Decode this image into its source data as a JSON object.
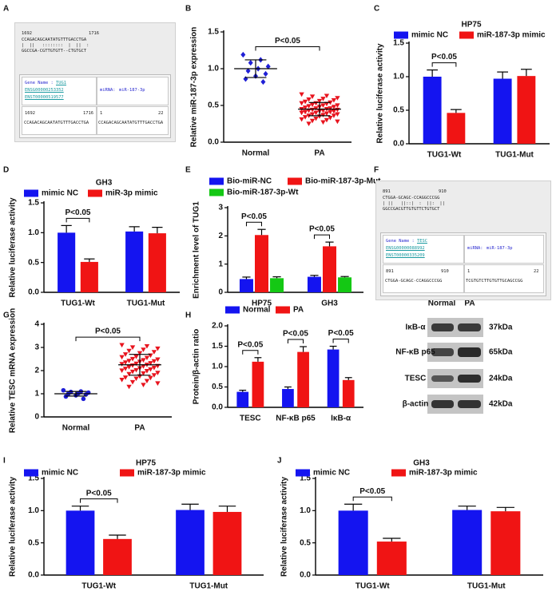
{
  "chart_data": [
    {
      "panel": "B",
      "type": "scatter",
      "y_label": "Relative miR-187-3p expression",
      "categories": [
        "Normal",
        "PA"
      ],
      "groups": [
        {
          "color": "#1f1fd6",
          "marker": "diamond",
          "values": [
            1.19,
            1.12,
            1.08,
            1.03,
            1.0,
            0.97,
            0.93,
            0.9,
            0.86,
            0.82
          ],
          "mean": 1.0,
          "sd": 0.12
        },
        {
          "color": "#e8141e",
          "marker": "triangle-down",
          "values": [
            0.65,
            0.63,
            0.62,
            0.6,
            0.59,
            0.58,
            0.57,
            0.56,
            0.55,
            0.54,
            0.53,
            0.53,
            0.52,
            0.51,
            0.5,
            0.5,
            0.49,
            0.48,
            0.48,
            0.47,
            0.46,
            0.46,
            0.45,
            0.45,
            0.44,
            0.44,
            0.43,
            0.43,
            0.42,
            0.42,
            0.41,
            0.41,
            0.4,
            0.4,
            0.39,
            0.38,
            0.38,
            0.37,
            0.36,
            0.36,
            0.35,
            0.34,
            0.33,
            0.32,
            0.31,
            0.3,
            0.29,
            0.28,
            0.27,
            0.25
          ],
          "mean": 0.45,
          "sd": 0.09
        }
      ],
      "ylim": [
        0,
        1.5
      ],
      "yticks": [
        {
          "value": 0,
          "label": "0.0"
        },
        {
          "value": 0.5,
          "label": "0.5"
        },
        {
          "value": 1,
          "label": "1.0"
        },
        {
          "value": 1.5,
          "label": "1.5"
        }
      ],
      "annotations": [
        {
          "text": "P<0.05",
          "between": [
            0,
            1
          ]
        }
      ]
    },
    {
      "panel": "C",
      "type": "bar",
      "title": "HP75",
      "y_label": "Relative luciferase activity",
      "categories": [
        "TUG1-Wt",
        "TUG1-Mut"
      ],
      "series": [
        {
          "name": "mimic NC",
          "color": "#1414f0",
          "values": [
            1.0,
            0.97
          ],
          "errors": [
            0.1,
            0.1
          ]
        },
        {
          "name": "miR-187-3p mimic",
          "color": "#f01414",
          "values": [
            0.46,
            1.01
          ],
          "errors": [
            0.05,
            0.1
          ]
        }
      ],
      "ylim": [
        0,
        1.5
      ],
      "yticks": [
        {
          "value": 0,
          "label": "0.0"
        },
        {
          "value": 0.5,
          "label": "0.5"
        },
        {
          "value": 1,
          "label": "1.0"
        },
        {
          "value": 1.5,
          "label": "1.5"
        }
      ],
      "annotations": [
        {
          "text": "P<0.05",
          "category": 0,
          "between": [
            0,
            1
          ]
        }
      ]
    },
    {
      "panel": "D",
      "type": "bar",
      "title": "GH3",
      "y_label": "Relative luciferase activity",
      "categories": [
        "TUG1-Wt",
        "TUG1-Mut"
      ],
      "series": [
        {
          "name": "mimic NC",
          "color": "#1414f0",
          "values": [
            1.0,
            1.02
          ],
          "errors": [
            0.12,
            0.08
          ]
        },
        {
          "name": "miR-3p mimic",
          "color": "#f01414",
          "values": [
            0.51,
            0.99
          ],
          "errors": [
            0.05,
            0.1
          ]
        }
      ],
      "ylim": [
        0,
        1.5
      ],
      "yticks": [
        {
          "value": 0,
          "label": "0.0"
        },
        {
          "value": 0.5,
          "label": "0.5"
        },
        {
          "value": 1,
          "label": "1.0"
        },
        {
          "value": 1.5,
          "label": "1.5"
        }
      ],
      "annotations": [
        {
          "text": "P<0.05",
          "category": 0,
          "between": [
            0,
            1
          ]
        }
      ]
    },
    {
      "panel": "E",
      "type": "bar",
      "y_label": "Enrichment level of TUG1",
      "categories": [
        "HP75",
        "GH3"
      ],
      "series": [
        {
          "name": "Bio-miR-NC",
          "color": "#1414f0",
          "values": [
            0.47,
            0.55
          ],
          "errors": [
            0.07,
            0.05
          ]
        },
        {
          "name": "Bio-miR-187-3p-Mut",
          "color": "#f01414",
          "values": [
            2.03,
            1.63
          ],
          "errors": [
            0.2,
            0.15
          ]
        },
        {
          "name": "Bio-miR-187-3p-Wt",
          "color": "#14c814",
          "values": [
            0.5,
            0.53
          ],
          "errors": [
            0.05,
            0.03
          ]
        }
      ],
      "ylim": [
        0,
        3
      ],
      "yticks": [
        0,
        1,
        2,
        3
      ],
      "annotations": [
        {
          "text": "P<0.05",
          "category": 0,
          "between": [
            0,
            1
          ]
        },
        {
          "text": "P<0.05",
          "category": 1,
          "between": [
            0,
            1
          ]
        }
      ]
    },
    {
      "panel": "G",
      "type": "scatter",
      "y_label": "Relative TESC mRNA expression",
      "categories": [
        "Normal",
        "PA"
      ],
      "groups": [
        {
          "color": "#1f1fd6",
          "marker": "circle",
          "values": [
            1.15,
            1.1,
            1.08,
            1.05,
            1.02,
            1.0,
            0.97,
            0.93,
            0.88,
            0.78
          ],
          "mean": 1.0,
          "sd": 0.1
        },
        {
          "color": "#e8141e",
          "marker": "triangle-down",
          "values": [
            3.1,
            3.05,
            3.0,
            2.95,
            2.9,
            2.85,
            2.8,
            2.75,
            2.7,
            2.65,
            2.6,
            2.58,
            2.55,
            2.5,
            2.48,
            2.45,
            2.42,
            2.4,
            2.38,
            2.35,
            2.32,
            2.3,
            2.28,
            2.25,
            2.22,
            2.2,
            2.18,
            2.15,
            2.12,
            2.1,
            2.08,
            2.05,
            2.02,
            2.0,
            1.98,
            1.95,
            1.9,
            1.88,
            1.85,
            1.8,
            1.75,
            1.7,
            1.68,
            1.65,
            1.6,
            1.55,
            1.5,
            1.45,
            1.38,
            1.3
          ],
          "mean": 2.25,
          "sd": 0.45
        }
      ],
      "ylim": [
        0,
        4
      ],
      "yticks": [
        0,
        1,
        2,
        3,
        4
      ],
      "annotations": [
        {
          "text": "P<0.05",
          "between": [
            0,
            1
          ]
        }
      ]
    },
    {
      "panel": "H",
      "type": "bar",
      "y_label": "Protein/β-actin ratio",
      "categories": [
        "TESC",
        "NF-κB p65",
        "IκB-α"
      ],
      "series": [
        {
          "name": "Normal",
          "color": "#1414f0",
          "values": [
            0.38,
            0.45,
            1.42
          ],
          "errors": [
            0.04,
            0.05,
            0.08
          ]
        },
        {
          "name": "PA",
          "color": "#f01414",
          "values": [
            1.12,
            1.36,
            0.67
          ],
          "errors": [
            0.1,
            0.13,
            0.06
          ]
        }
      ],
      "ylim": [
        0,
        2
      ],
      "yticks": [
        {
          "value": 0,
          "label": "0.0"
        },
        {
          "value": 0.5,
          "label": "0.5"
        },
        {
          "value": 1,
          "label": "1.0"
        },
        {
          "value": 1.5,
          "label": "1.5"
        },
        {
          "value": 2,
          "label": "2.0"
        }
      ],
      "annotations": [
        {
          "text": "P<0.05",
          "category": 0,
          "between": [
            0,
            1
          ]
        },
        {
          "text": "P<0.05",
          "category": 1,
          "between": [
            0,
            1
          ]
        },
        {
          "text": "P<0.05",
          "category": 2,
          "between": [
            0,
            1
          ]
        }
      ]
    },
    {
      "panel": "I",
      "type": "bar",
      "title": "HP75",
      "y_label": "Relative luciferase activity",
      "categories": [
        "TUG1-Wt",
        "TUG1-Mut"
      ],
      "series": [
        {
          "name": "mimic NC",
          "color": "#1414f0",
          "values": [
            1.0,
            1.01
          ],
          "errors": [
            0.07,
            0.09
          ]
        },
        {
          "name": "miR-187-3p mimic",
          "color": "#f01414",
          "values": [
            0.56,
            0.98
          ],
          "errors": [
            0.06,
            0.09
          ]
        }
      ],
      "ylim": [
        0,
        1.5
      ],
      "yticks": [
        {
          "value": 0,
          "label": "0.0"
        },
        {
          "value": 0.5,
          "label": "0.5"
        },
        {
          "value": 1,
          "label": "1.0"
        },
        {
          "value": 1.5,
          "label": "1.5"
        }
      ],
      "annotations": [
        {
          "text": "P<0.05",
          "category": 0,
          "between": [
            0,
            1
          ]
        }
      ]
    },
    {
      "panel": "J",
      "type": "bar",
      "title": "GH3",
      "y_label": "Relative luciferase activity",
      "categories": [
        "TUG1-Wt",
        "TUG1-Mut"
      ],
      "series": [
        {
          "name": "mimic NC",
          "color": "#1414f0",
          "values": [
            1.0,
            1.01
          ],
          "errors": [
            0.1,
            0.06
          ]
        },
        {
          "name": "miR-187-3p mimic",
          "color": "#f01414",
          "values": [
            0.52,
            0.99
          ],
          "errors": [
            0.05,
            0.06
          ]
        }
      ],
      "ylim": [
        0,
        1.5
      ],
      "yticks": [
        {
          "value": 0,
          "label": "0.0"
        },
        {
          "value": 0.5,
          "label": "0.5"
        },
        {
          "value": 1,
          "label": "1.0"
        },
        {
          "value": 1.5,
          "label": "1.5"
        }
      ],
      "annotations": [
        {
          "text": "P<0.05",
          "category": 0,
          "between": [
            0,
            1
          ]
        }
      ]
    }
  ],
  "alignments": [
    {
      "panel": "A",
      "start": "1692",
      "end": "1716",
      "target": "CCAGACAGCAATATGTTTGACCTGA",
      "match": "|  ||   ::::::::  |  ||  :",
      "mirna_seq": "GGCCGA-CGTTGTGTT--CTGTGCT",
      "gene_label": "Gene Name :",
      "gene": "TUG1",
      "ids": [
        "ENSG00000253352",
        "ENST00000519577"
      ],
      "mirna_label": "miRNA:",
      "mirna": "miR-187-3p",
      "site_start": "1692",
      "site_end": "1716",
      "site_seq": "CCAGACAGCAATATGTTTGACCTGA",
      "mirna_start": "1",
      "mirna_end": "22",
      "mirna_site_seq": "CCAGACAGCAATATGTTTGACCTGA"
    },
    {
      "panel": "F",
      "start": "891",
      "end": "910",
      "target": "CTGGA-GCAGC-CCAGGCCCGG",
      "match": "| ||   ||::|  :  ||:  ||",
      "mirna_seq": "GGCCGACGTTGTGTTCTGTGCT",
      "gene_label": "Gene Name :",
      "gene": "TESC",
      "ids": [
        "ENSG00000088992",
        "ENST00000335209"
      ],
      "mirna_label": "miRNA:",
      "mirna": "miR-187-3p",
      "site_start": "891",
      "site_end": "910",
      "site_seq": "CTGGA-GCAGC-CCAGGCCCGG",
      "mirna_start": "1",
      "mirna_end": "22",
      "mirna_site_seq": "TCGTGTCTTGTGTTGCAGCCGG"
    }
  ],
  "blot": {
    "columns": [
      "Normal",
      "PA"
    ],
    "rows": [
      {
        "protein": "IκB-α",
        "size": "37kDa"
      },
      {
        "protein": "NF-κB p65",
        "size": "65kDa"
      },
      {
        "protein": "TESC",
        "size": "24kDa"
      },
      {
        "protein": "β-actin",
        "size": "42kDa"
      }
    ]
  }
}
